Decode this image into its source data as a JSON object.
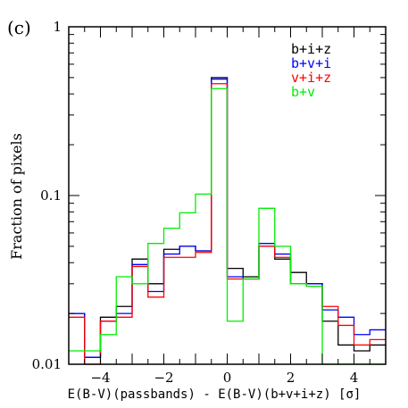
{
  "chart_data": {
    "type": "line",
    "panel_label": "(c)",
    "xlabel": "E(B-V)(passbands) - E(B-V)(b+v+i+z) [σ]",
    "ylabel": "Fraction of pixels",
    "xlim": [
      -5,
      5
    ],
    "ylim": [
      0.01,
      1
    ],
    "yscale": "log",
    "xticks": [
      -4,
      -2,
      0,
      2,
      4
    ],
    "xtick_labels": [
      "−4",
      "−2",
      "0",
      "2",
      "4"
    ],
    "yticks": [
      0.01,
      0.1,
      1
    ],
    "ytick_labels": [
      "0.01",
      "0.1",
      "1"
    ],
    "legend_placement": "top-right",
    "bin_edges": [
      -5.0,
      -4.5,
      -4.0,
      -3.5,
      -3.0,
      -2.5,
      -2.0,
      -1.5,
      -1.0,
      -0.5,
      0.0,
      0.5,
      1.0,
      1.5,
      2.0,
      2.5,
      3.0,
      3.5,
      4.0,
      4.5,
      5.0
    ],
    "series": [
      {
        "name": "b+i+z",
        "color": "#000000",
        "values": [
          0.02,
          0.011,
          0.019,
          0.022,
          0.042,
          0.03,
          0.048,
          0.05,
          0.047,
          0.5,
          0.037,
          0.033,
          0.05,
          0.042,
          0.035,
          0.03,
          0.018,
          0.013,
          0.012,
          0.013
        ]
      },
      {
        "name": "b+v+i",
        "color": "#0000ff",
        "values": [
          0.02,
          0.011,
          0.018,
          0.02,
          0.039,
          0.027,
          0.045,
          0.05,
          0.047,
          0.49,
          0.033,
          0.032,
          0.052,
          0.045,
          0.03,
          0.03,
          0.021,
          0.019,
          0.015,
          0.016
        ]
      },
      {
        "name": "v+i+z",
        "color": "#ff0000",
        "values": [
          0.019,
          0.01,
          0.018,
          0.019,
          0.038,
          0.025,
          0.043,
          0.043,
          0.046,
          0.46,
          0.032,
          0.032,
          0.05,
          0.043,
          0.03,
          0.029,
          0.022,
          0.017,
          0.013,
          0.014
        ]
      },
      {
        "name": "b+v",
        "color": "#00ee00",
        "values": [
          0.012,
          0.012,
          0.015,
          0.033,
          0.03,
          0.052,
          0.064,
          0.079,
          0.102,
          0.43,
          0.018,
          0.032,
          0.084,
          0.05,
          0.03,
          0.029,
          0.01,
          0.008,
          0.008,
          0.008
        ]
      }
    ]
  }
}
